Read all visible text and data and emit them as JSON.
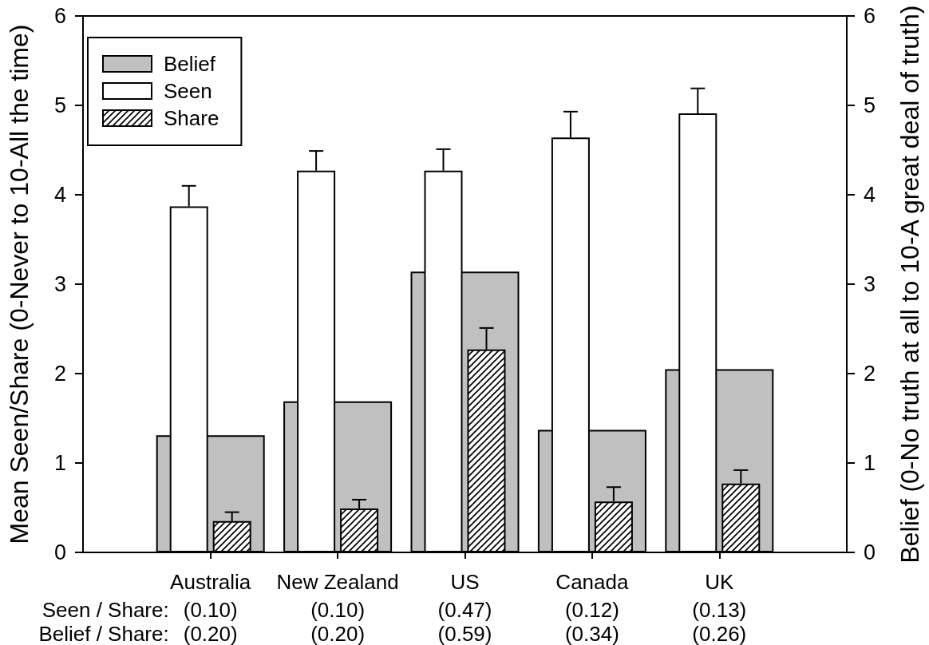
{
  "chart_data": {
    "type": "bar",
    "ylabel": "Mean Seen/Share (0-Never to 10-All the time)",
    "y2label": "Belief (0-No truth at all to 10-A great deal of truth)",
    "categories": [
      "Australia",
      "New Zealand",
      "US",
      "Canada",
      "UK"
    ],
    "series": [
      {
        "name": "Belief",
        "color": "#c0c0c0",
        "axis": "y2",
        "values": [
          1.31,
          1.69,
          3.14,
          1.37,
          2.05
        ]
      },
      {
        "name": "Seen",
        "color": "#ffffff",
        "values": [
          3.87,
          4.27,
          4.27,
          4.64,
          4.91
        ],
        "errors": [
          [
            3.87,
            4.1
          ],
          [
            4.27,
            4.49
          ],
          [
            4.27,
            4.51
          ],
          [
            4.64,
            4.93
          ],
          [
            4.91,
            5.19
          ]
        ]
      },
      {
        "name": "Share",
        "color": "#000000",
        "values": [
          0.35,
          0.49,
          2.27,
          0.57,
          0.77
        ],
        "errors": [
          [
            0.35,
            0.45
          ],
          [
            0.49,
            0.59
          ],
          [
            2.27,
            2.51
          ],
          [
            0.57,
            0.73
          ],
          [
            0.77,
            0.92
          ]
        ]
      }
    ],
    "ylim": [
      0,
      6
    ],
    "yticks": [
      0,
      1,
      2,
      3,
      4,
      5,
      6
    ],
    "y2lim": [
      0,
      6
    ],
    "y2ticks": [
      0,
      1,
      2,
      3,
      4,
      5,
      6
    ],
    "legend": "top left",
    "annotations": [
      "Seen / Share:",
      "(0.10)",
      "(0.10)",
      "(0.47)",
      "(0.12)",
      "(0.13)",
      "Belief / Share:",
      "(0.20)",
      "(0.20)",
      "(0.59)",
      "(0.34)",
      "(0.26)"
    ]
  }
}
